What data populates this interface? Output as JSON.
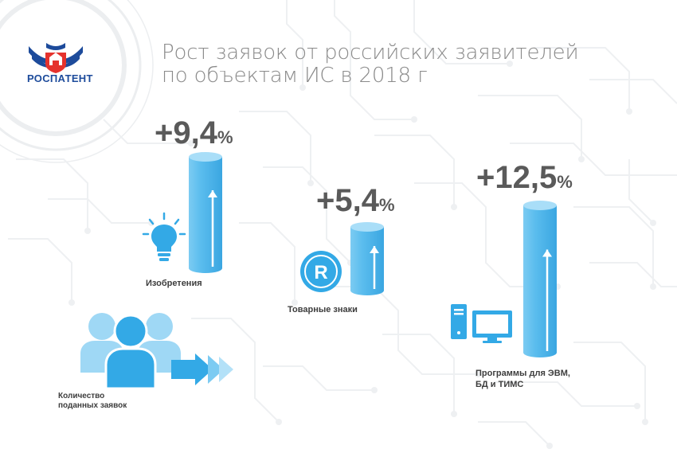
{
  "logo": {
    "text": "РОСПАТЕНТ",
    "icon": "double-headed-eagle-emblem-icon",
    "color": "#1d4b9b"
  },
  "title": {
    "line1": "Рост заявок от российских заявителей",
    "line2": "по объектам ИС в 2018 г"
  },
  "chart_data": {
    "type": "bar",
    "title": "Рост заявок от российских заявителей по объектам ИС в 2018 г",
    "categories": [
      "Изобретения",
      "Товарные знаки",
      "Программы для ЭВМ, БД и ТИМС"
    ],
    "series": [
      {
        "values": [
          9.4,
          5.4,
          12.5
        ]
      }
    ],
    "value_labels": [
      {
        "number": "+9,4",
        "unit": "%"
      },
      {
        "number": "+5,4",
        "unit": "%"
      },
      {
        "number": "+12,5",
        "unit": "%"
      }
    ],
    "category_label_lines": [
      [
        "Изобретения"
      ],
      [
        "Товарные знаки"
      ],
      [
        "Программы для ЭВМ,",
        "БД и ТИМС"
      ]
    ],
    "bar_color": "#4cb8ec",
    "ylim": [
      0,
      12.5
    ],
    "grid": false,
    "legend": "none"
  },
  "icons": [
    "lightbulb-icon",
    "registered-trademark-icon",
    "computer-icon"
  ],
  "people": {
    "label_line1": "Количество",
    "label_line2": "поданных заявок",
    "icon": "people-group-icon",
    "arrow_icon": "arrow-right-icon"
  },
  "colors": {
    "accent": "#33a9e6",
    "light_accent": "#9fd8f5",
    "text_dark": "#3d3d3d",
    "title_gray": "#8a8a8a",
    "value_gray": "#5a5a5a",
    "background_pattern": "#eef0f2"
  }
}
